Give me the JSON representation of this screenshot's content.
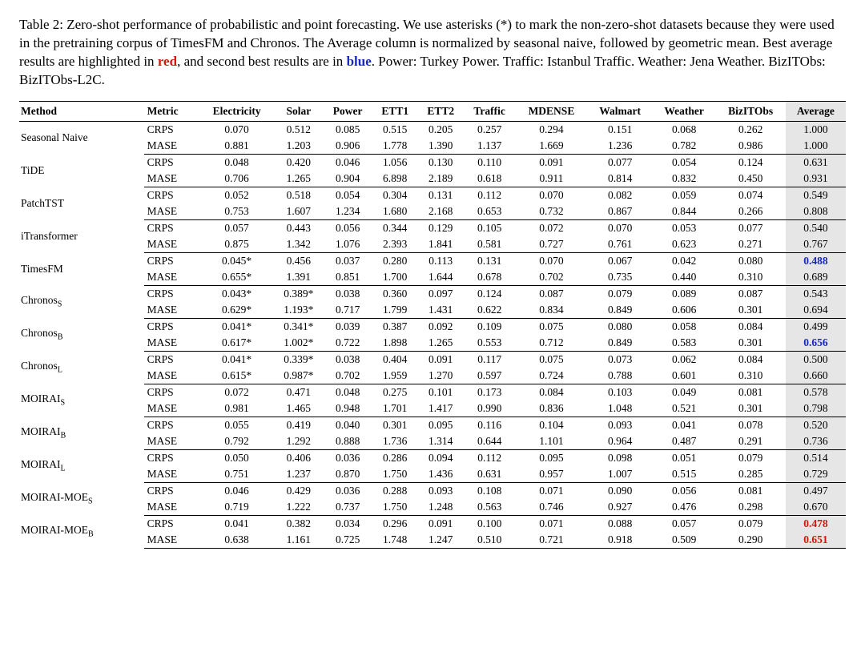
{
  "caption": {
    "prefix": "Table 2: Zero-shot performance of probabilistic and point forecasting. We use asterisks (*) to mark the non-zero-shot datasets because they were used in the pretraining corpus of TimesFM and Chronos. The Average column is normalized by seasonal naive, followed by geometric mean. Best average results are highlighted in ",
    "red": "red",
    "mid": ", and second best results are in ",
    "blue": "blue",
    "suffix": ". Power: Turkey Power. Traffic: Istanbul Traffic. Weather: Jena Weather. BizITObs: BizITObs-L2C."
  },
  "headers": [
    "Method",
    "Metric",
    "Electricity",
    "Solar",
    "Power",
    "ETT1",
    "ETT2",
    "Traffic",
    "MDENSE",
    "Walmart",
    "Weather",
    "BizITObs",
    "Average"
  ],
  "metrics": [
    "CRPS",
    "MASE"
  ],
  "rows": [
    {
      "method": "Seasonal Naive",
      "crps": [
        "0.070",
        "0.512",
        "0.085",
        "0.515",
        "0.205",
        "0.257",
        "0.294",
        "0.151",
        "0.068",
        "0.262",
        "1.000"
      ],
      "mase": [
        "0.881",
        "1.203",
        "0.906",
        "1.778",
        "1.390",
        "1.137",
        "1.669",
        "1.236",
        "0.782",
        "0.986",
        "1.000"
      ]
    },
    {
      "method": "TiDE",
      "crps": [
        "0.048",
        "0.420",
        "0.046",
        "1.056",
        "0.130",
        "0.110",
        "0.091",
        "0.077",
        "0.054",
        "0.124",
        "0.631"
      ],
      "mase": [
        "0.706",
        "1.265",
        "0.904",
        "6.898",
        "2.189",
        "0.618",
        "0.911",
        "0.814",
        "0.832",
        "0.450",
        "0.931"
      ]
    },
    {
      "method": "PatchTST",
      "crps": [
        "0.052",
        "0.518",
        "0.054",
        "0.304",
        "0.131",
        "0.112",
        "0.070",
        "0.082",
        "0.059",
        "0.074",
        "0.549"
      ],
      "mase": [
        "0.753",
        "1.607",
        "1.234",
        "1.680",
        "2.168",
        "0.653",
        "0.732",
        "0.867",
        "0.844",
        "0.266",
        "0.808"
      ]
    },
    {
      "method": "iTransformer",
      "crps": [
        "0.057",
        "0.443",
        "0.056",
        "0.344",
        "0.129",
        "0.105",
        "0.072",
        "0.070",
        "0.053",
        "0.077",
        "0.540"
      ],
      "mase": [
        "0.875",
        "1.342",
        "1.076",
        "2.393",
        "1.841",
        "0.581",
        "0.727",
        "0.761",
        "0.623",
        "0.271",
        "0.767"
      ]
    },
    {
      "method": "TimesFM",
      "crps": [
        "0.045*",
        "0.456",
        "0.037",
        "0.280",
        "0.113",
        "0.131",
        "0.070",
        "0.067",
        "0.042",
        "0.080",
        "0.488"
      ],
      "mase": [
        "0.655*",
        "1.391",
        "0.851",
        "1.700",
        "1.644",
        "0.678",
        "0.702",
        "0.735",
        "0.440",
        "0.310",
        "0.689"
      ],
      "avg_crps_hl": "blue"
    },
    {
      "method": "Chronos",
      "sub": "S",
      "crps": [
        "0.043*",
        "0.389*",
        "0.038",
        "0.360",
        "0.097",
        "0.124",
        "0.087",
        "0.079",
        "0.089",
        "0.087",
        "0.543"
      ],
      "mase": [
        "0.629*",
        "1.193*",
        "0.717",
        "1.799",
        "1.431",
        "0.622",
        "0.834",
        "0.849",
        "0.606",
        "0.301",
        "0.694"
      ]
    },
    {
      "method": "Chronos",
      "sub": "B",
      "crps": [
        "0.041*",
        "0.341*",
        "0.039",
        "0.387",
        "0.092",
        "0.109",
        "0.075",
        "0.080",
        "0.058",
        "0.084",
        "0.499"
      ],
      "mase": [
        "0.617*",
        "1.002*",
        "0.722",
        "1.898",
        "1.265",
        "0.553",
        "0.712",
        "0.849",
        "0.583",
        "0.301",
        "0.656"
      ],
      "avg_mase_hl": "blue"
    },
    {
      "method": "Chronos",
      "sub": "L",
      "crps": [
        "0.041*",
        "0.339*",
        "0.038",
        "0.404",
        "0.091",
        "0.117",
        "0.075",
        "0.073",
        "0.062",
        "0.084",
        "0.500"
      ],
      "mase": [
        "0.615*",
        "0.987*",
        "0.702",
        "1.959",
        "1.270",
        "0.597",
        "0.724",
        "0.788",
        "0.601",
        "0.310",
        "0.660"
      ]
    },
    {
      "method": "MOIRAI",
      "sub": "S",
      "sc": true,
      "crps": [
        "0.072",
        "0.471",
        "0.048",
        "0.275",
        "0.101",
        "0.173",
        "0.084",
        "0.103",
        "0.049",
        "0.081",
        "0.578"
      ],
      "mase": [
        "0.981",
        "1.465",
        "0.948",
        "1.701",
        "1.417",
        "0.990",
        "0.836",
        "1.048",
        "0.521",
        "0.301",
        "0.798"
      ]
    },
    {
      "method": "MOIRAI",
      "sub": "B",
      "sc": true,
      "crps": [
        "0.055",
        "0.419",
        "0.040",
        "0.301",
        "0.095",
        "0.116",
        "0.104",
        "0.093",
        "0.041",
        "0.078",
        "0.520"
      ],
      "mase": [
        "0.792",
        "1.292",
        "0.888",
        "1.736",
        "1.314",
        "0.644",
        "1.101",
        "0.964",
        "0.487",
        "0.291",
        "0.736"
      ]
    },
    {
      "method": "MOIRAI",
      "sub": "L",
      "sc": true,
      "crps": [
        "0.050",
        "0.406",
        "0.036",
        "0.286",
        "0.094",
        "0.112",
        "0.095",
        "0.098",
        "0.051",
        "0.079",
        "0.514"
      ],
      "mase": [
        "0.751",
        "1.237",
        "0.870",
        "1.750",
        "1.436",
        "0.631",
        "0.957",
        "1.007",
        "0.515",
        "0.285",
        "0.729"
      ]
    },
    {
      "method": "MOIRAI-MOE",
      "sub": "S",
      "sc": true,
      "crps": [
        "0.046",
        "0.429",
        "0.036",
        "0.288",
        "0.093",
        "0.108",
        "0.071",
        "0.090",
        "0.056",
        "0.081",
        "0.497"
      ],
      "mase": [
        "0.719",
        "1.222",
        "0.737",
        "1.750",
        "1.248",
        "0.563",
        "0.746",
        "0.927",
        "0.476",
        "0.298",
        "0.670"
      ]
    },
    {
      "method": "MOIRAI-MOE",
      "sub": "B",
      "sc": true,
      "crps": [
        "0.041",
        "0.382",
        "0.034",
        "0.296",
        "0.091",
        "0.100",
        "0.071",
        "0.088",
        "0.057",
        "0.079",
        "0.478"
      ],
      "mase": [
        "0.638",
        "1.161",
        "0.725",
        "1.748",
        "1.247",
        "0.510",
        "0.721",
        "0.918",
        "0.509",
        "0.290",
        "0.651"
      ],
      "avg_crps_hl": "red",
      "avg_mase_hl": "red"
    }
  ]
}
